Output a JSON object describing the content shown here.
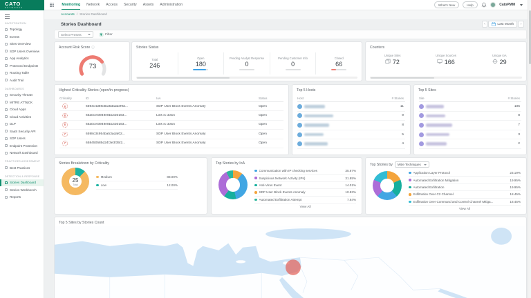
{
  "brand": {
    "logo_text": "CATO",
    "logo_sub": "NETWORKS"
  },
  "header": {
    "nav_items": [
      {
        "label": "Monitoring",
        "active": true
      },
      {
        "label": "Network",
        "active": false
      },
      {
        "label": "Access",
        "active": false
      },
      {
        "label": "Security",
        "active": false
      },
      {
        "label": "Assets",
        "active": false
      },
      {
        "label": "Administration",
        "active": false
      }
    ],
    "whats_new_label": "What's New",
    "help_label": "Help",
    "username": "CatoPMM"
  },
  "breadcrumb": {
    "root": "Accounts",
    "separator": "/",
    "current": "Stories Dashboard"
  },
  "toolbar": {
    "page_title": "Stories Dashboard",
    "date_range": "Last Month",
    "presets_placeholder": "Select Presets",
    "filter_label": "Filter"
  },
  "sidebar": {
    "active_item": "Stories Dashboard",
    "sections": [
      {
        "label": "INVESTIGATION",
        "items": [
          "Topology",
          "Events",
          "Sites Overview",
          "SDP Users Overview",
          "App Analytics",
          "Protected Endpoints",
          "Routing Table",
          "Audit Trail"
        ]
      },
      {
        "label": "DASHBOARDS",
        "items": [
          "Security Threats",
          "MITRE ATT&CK",
          "Cloud Apps",
          "Cloud Activities",
          "DLP",
          "SaaS Security API",
          "SDP Users",
          "Endpoint Protection",
          "Network Dashboard"
        ]
      },
      {
        "label": "PRACTICES ASSESSMENT",
        "items": [
          "Best Practices"
        ]
      },
      {
        "label": "DETECTION & RESPONSE",
        "items": [
          "Stories Dashboard",
          "Stories Workbench",
          "Reports"
        ]
      }
    ]
  },
  "cards": {
    "risk_score": {
      "title": "Account Risk Score",
      "value": "73",
      "max": 100,
      "gauge_color": "#ee7b72",
      "track_color": "#e3e4e5"
    },
    "stories_status": {
      "title": "Stories Status",
      "metrics": [
        {
          "label": "Total",
          "value": "246",
          "bar_pct": null,
          "bar_color": null
        },
        {
          "label": "Open",
          "value": "180",
          "bar_pct": 85,
          "bar_color": "#3da2e8"
        },
        {
          "label": "Pending Analyst Response",
          "value": "0",
          "bar_pct": 0,
          "bar_color": "#c9c9c9"
        },
        {
          "label": "Pending Customer Info",
          "value": "0",
          "bar_pct": 0,
          "bar_color": "#c9c9c9"
        },
        {
          "label": "Closed",
          "value": "66",
          "bar_pct": 30,
          "bar_color": "#ef8077"
        }
      ]
    },
    "counters": {
      "title": "Counters",
      "metrics": [
        {
          "label": "Unique Sites",
          "value": "72",
          "icon": "sites-icon"
        },
        {
          "label": "Unique Sources",
          "value": "166",
          "icon": "sources-icon"
        },
        {
          "label": "Unique IoA",
          "value": "29",
          "icon": "ioa-icon"
        }
      ]
    },
    "criticality": {
      "title": "Highest Criticality Stories (open/in-progress)",
      "columns": [
        "Criticality",
        "ID",
        "IoA",
        "Status"
      ],
      "rows": [
        {
          "criticality": "8",
          "id": "6594c4d6fb4ba53adaef9d...",
          "ioa": "SDP User Block Events Anomaly",
          "status": "Open"
        },
        {
          "criticality": "8",
          "id": "65a0cef3949e8b14b0193...",
          "ioa": "Link is down",
          "status": "Open"
        },
        {
          "criticality": "8",
          "id": "65a0cef3949e8b14b0193...",
          "ioa": "Link is down",
          "status": "Open"
        },
        {
          "criticality": "7",
          "id": "6598c34954ba53adaf02...",
          "ioa": "SDP User Block Events Anomaly",
          "status": "Open"
        },
        {
          "criticality": "7",
          "id": "658450585d24f3e3f35f2...",
          "ioa": "SDP User Block Events Anomaly",
          "status": "Open"
        }
      ]
    },
    "top_hosts": {
      "title": "Top 5 Hosts",
      "columns": [
        "Host",
        "# Stories"
      ],
      "avatar_color": "#6cacdc",
      "blur_color": "#9db7cc",
      "rows": [
        {
          "name_redacted": true,
          "blur_width": 30,
          "stories": "11"
        },
        {
          "name_redacted": true,
          "blur_width": 42,
          "stories": "9"
        },
        {
          "name_redacted": true,
          "blur_width": 36,
          "stories": "8"
        },
        {
          "name_redacted": true,
          "blur_width": 28,
          "stories": "5"
        },
        {
          "name_redacted": true,
          "blur_width": 34,
          "stories": "4"
        }
      ]
    },
    "top_sites": {
      "title": "Top 5 Sites",
      "columns": [
        "Site",
        "# Stories"
      ],
      "avatar_color": "#a29ae0",
      "blur_color": "#a9a4cf",
      "rows": [
        {
          "name_redacted": true,
          "blur_width": 26,
          "stories": "105"
        },
        {
          "name_redacted": true,
          "blur_width": 28,
          "stories": "8"
        },
        {
          "name_redacted": true,
          "blur_width": 38,
          "stories": "7"
        },
        {
          "name_redacted": true,
          "blur_width": 34,
          "stories": "3"
        },
        {
          "name_redacted": true,
          "blur_width": 30,
          "stories": "2"
        }
      ]
    },
    "breakdown": {
      "title": "Stories Breakdown by Criticality",
      "center_value": "25",
      "center_label": "Total",
      "draw_order": [
        1,
        0
      ],
      "segments": [
        {
          "label": "Medium",
          "pct": "88.00%",
          "value": 88,
          "color": "#f5b961"
        },
        {
          "label": "Low",
          "pct": "12.00%",
          "value": 12,
          "color": "#1db3a2"
        }
      ]
    },
    "top_ioa": {
      "title": "Top Stories by IoA",
      "view_all": "View All",
      "draw_order": [
        3,
        0,
        2,
        1,
        4
      ],
      "segments": [
        {
          "label": "Communication with IP checking services",
          "pct": "35.67%",
          "value": 35.67,
          "color": "#41a6e3"
        },
        {
          "label": "Suspicious Network Activity (IPs)",
          "pct": "31.85%",
          "value": 31.85,
          "color": "#ad6dd8"
        },
        {
          "label": "Anti-Virus Event",
          "pct": "14.01%",
          "value": 14.01,
          "color": "#17af9e"
        },
        {
          "label": "SDP User Block Events Anomaly",
          "pct": "10.83%",
          "value": 10.83,
          "color": "#f4a43c"
        },
        {
          "label": "Automated Exfiltration Attempt",
          "pct": "7.64%",
          "value": 7.64,
          "color": "#2cb79c"
        }
      ]
    },
    "top_mitre": {
      "title_prefix": "Top Stories by",
      "dropdown_value": "Mitre Techniques",
      "view_all": "View All",
      "draw_order": [
        3,
        2,
        0,
        1,
        4
      ],
      "segments": [
        {
          "label": "Application Layer Protocol",
          "pct": "23.19%",
          "value": 23.19,
          "color": "#41a6e3"
        },
        {
          "label": "Automated Exfiltration Mitigation",
          "pct": "19.95%",
          "value": 19.95,
          "color": "#ad6dd8"
        },
        {
          "label": "Automated Exfiltration",
          "pct": "19.95%",
          "value": 19.95,
          "color": "#17af9e"
        },
        {
          "label": "Exfiltration Over C2 Channel",
          "pct": "18.45%",
          "value": 18.45,
          "color": "#f4a43c"
        },
        {
          "label": "Exfiltration Over Command and Control Channel Mitiga...",
          "pct": "18.45%",
          "value": 18.45,
          "color": "#33bcd4"
        }
      ]
    },
    "map": {
      "title": "Top 5 Sites by Stories Count",
      "marker_color": "#e2625a",
      "water_color": "#cfe4f6",
      "land_color": "#fdfeff"
    }
  }
}
